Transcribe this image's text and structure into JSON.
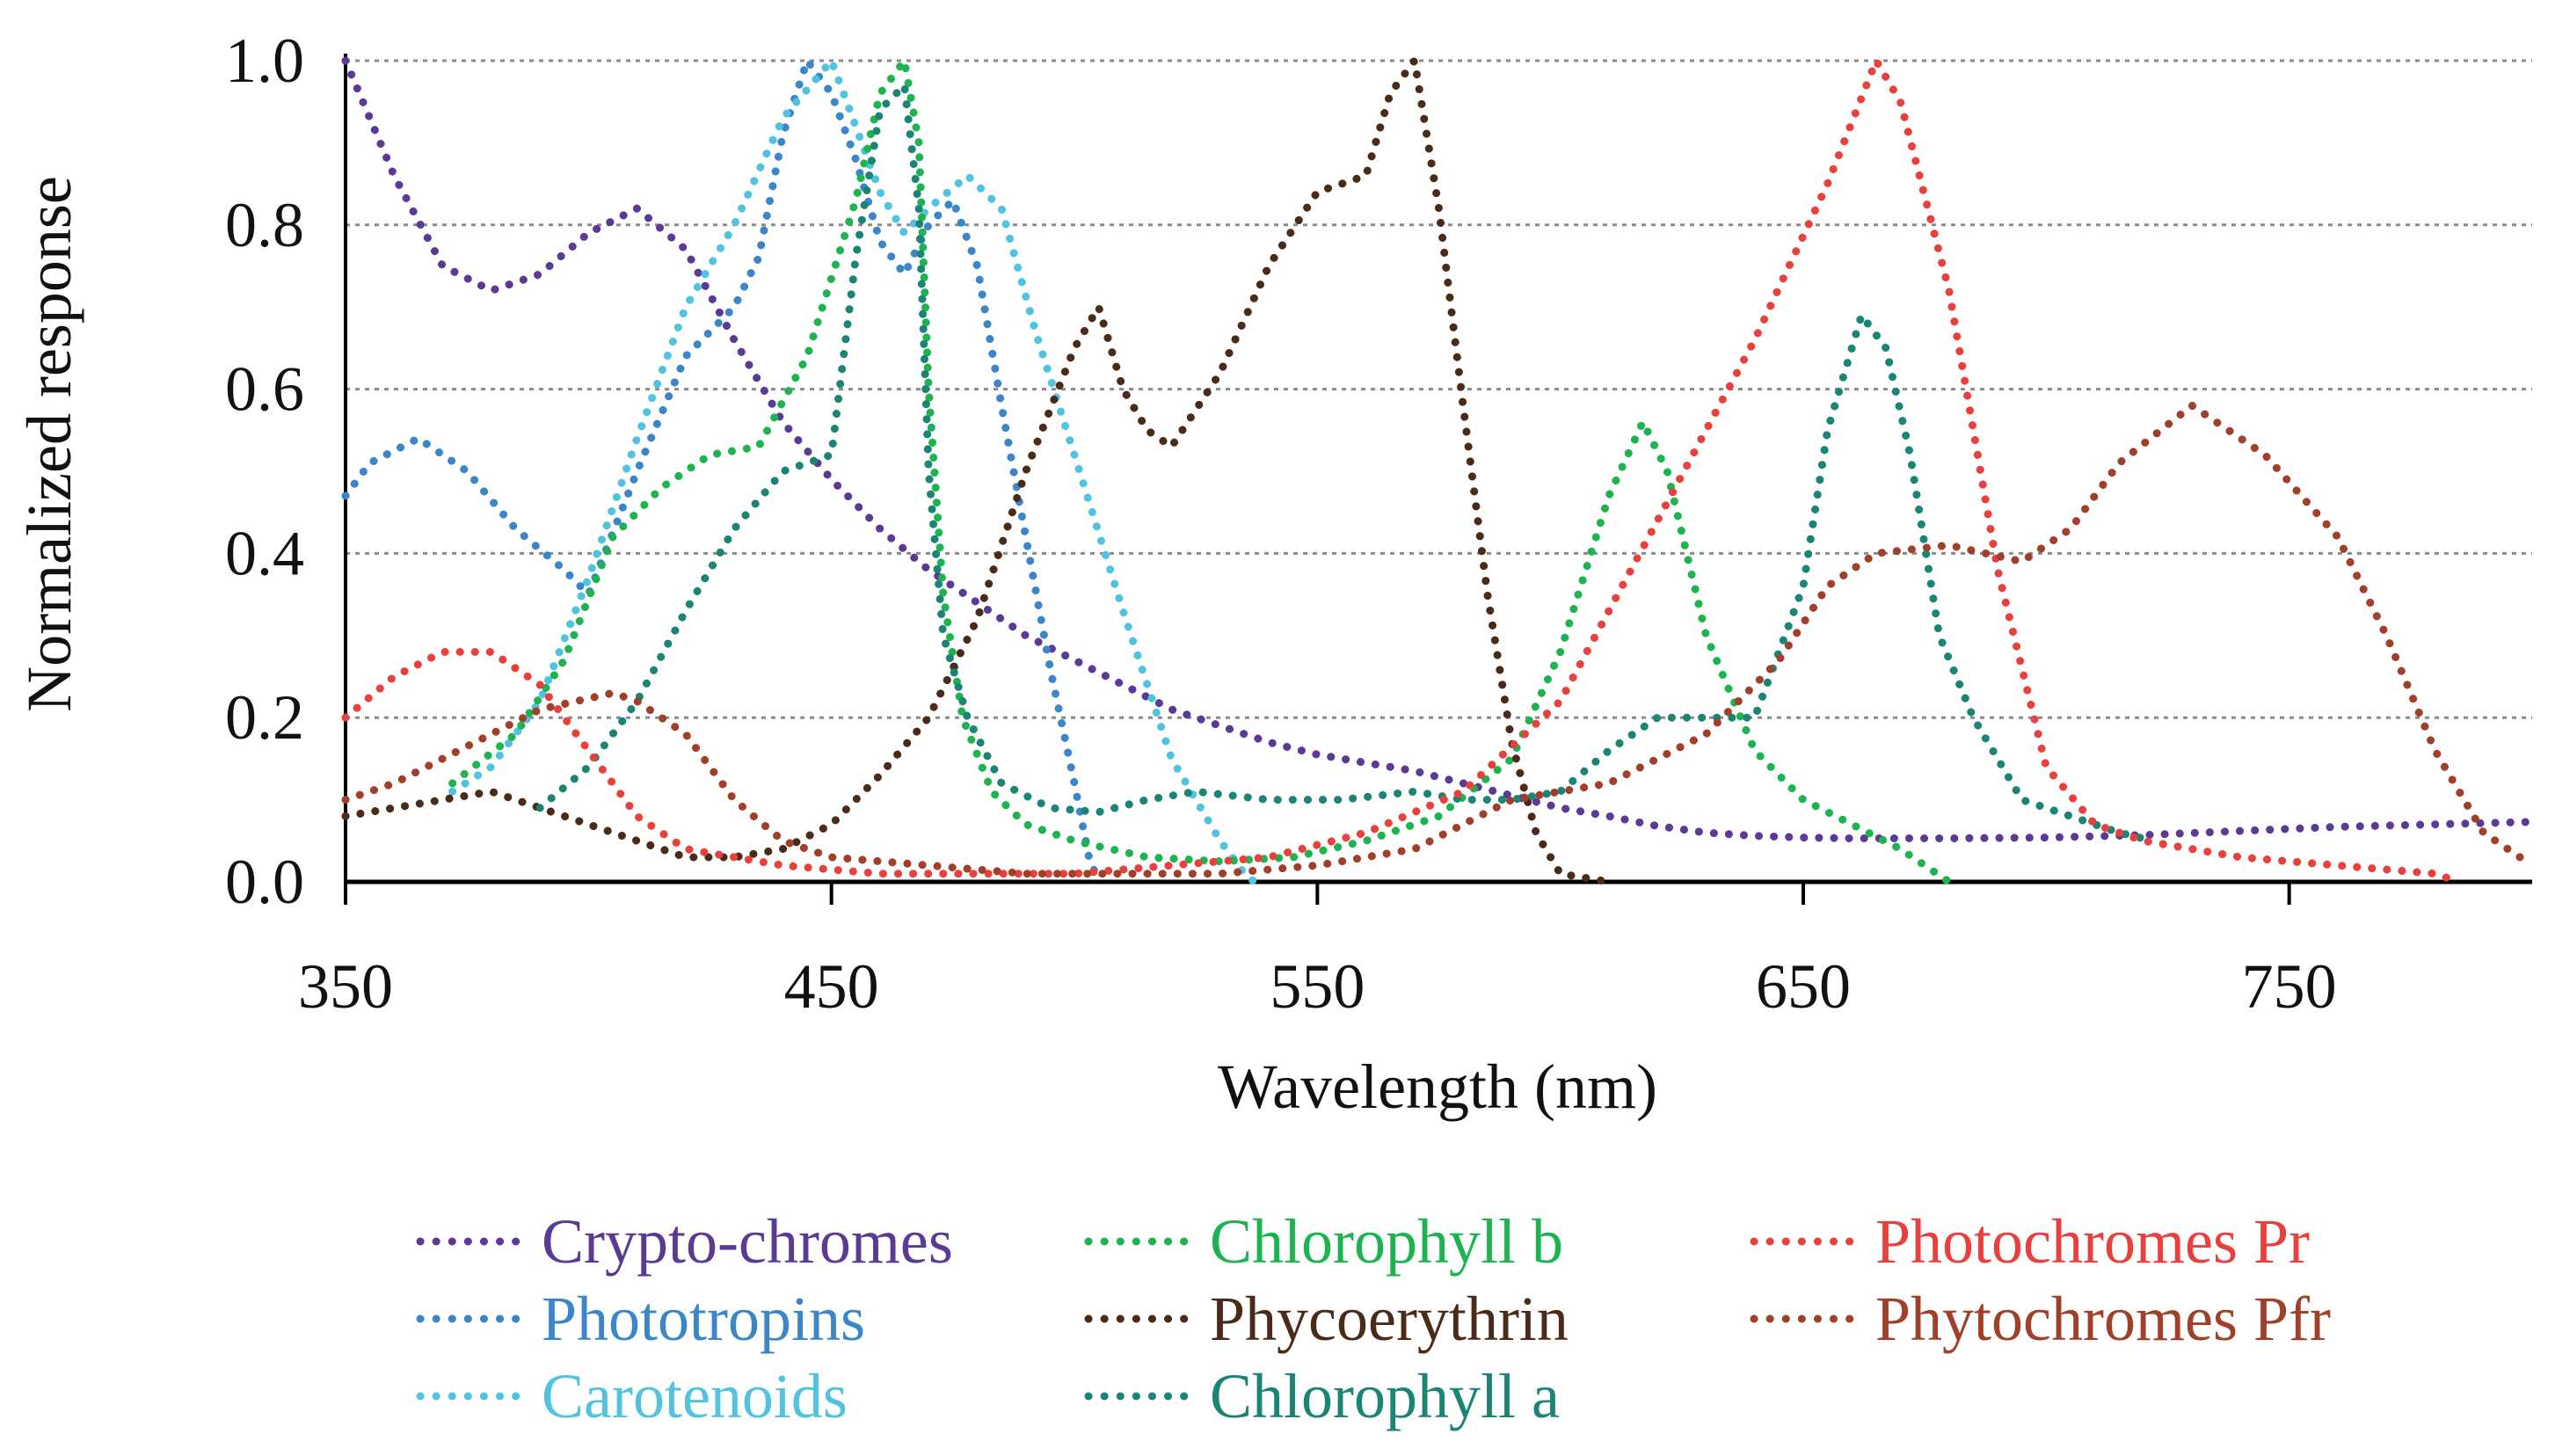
{
  "chart_data": {
    "type": "line",
    "title": "",
    "xlabel": "Wavelength (nm)",
    "ylabel": "Normalized  response",
    "xlim": [
      350,
      800
    ],
    "ylim": [
      0,
      1.0
    ],
    "x_ticks": [
      350,
      450,
      550,
      650,
      750
    ],
    "x_tick_labels": [
      "350",
      "450",
      "550",
      "650",
      "750"
    ],
    "y_ticks": [
      0,
      0.2,
      0.4,
      0.6,
      0.8,
      1.0
    ],
    "y_tick_labels": [
      "0.0",
      "0.2",
      "0.4",
      "0.6",
      "0.8",
      "1.0"
    ],
    "grid": "horizontal dotted",
    "legend_position": "bottom",
    "series": [
      {
        "name": "Crypto-chromes",
        "color": "#5b3a96",
        "points": [
          [
            350,
            1.0
          ],
          [
            360,
            0.86
          ],
          [
            370,
            0.75
          ],
          [
            380,
            0.72
          ],
          [
            390,
            0.74
          ],
          [
            400,
            0.79
          ],
          [
            410,
            0.82
          ],
          [
            420,
            0.77
          ],
          [
            430,
            0.66
          ],
          [
            440,
            0.56
          ],
          [
            450,
            0.49
          ],
          [
            460,
            0.43
          ],
          [
            470,
            0.38
          ],
          [
            480,
            0.34
          ],
          [
            490,
            0.3
          ],
          [
            500,
            0.27
          ],
          [
            510,
            0.24
          ],
          [
            520,
            0.21
          ],
          [
            530,
            0.19
          ],
          [
            540,
            0.17
          ],
          [
            550,
            0.155
          ],
          [
            560,
            0.145
          ],
          [
            570,
            0.135
          ],
          [
            580,
            0.12
          ],
          [
            590,
            0.105
          ],
          [
            600,
            0.09
          ],
          [
            610,
            0.08
          ],
          [
            620,
            0.068
          ],
          [
            630,
            0.06
          ],
          [
            640,
            0.056
          ],
          [
            650,
            0.054
          ],
          [
            660,
            0.053
          ],
          [
            680,
            0.053
          ],
          [
            700,
            0.054
          ],
          [
            720,
            0.057
          ],
          [
            740,
            0.062
          ],
          [
            760,
            0.067
          ],
          [
            780,
            0.07
          ],
          [
            800,
            0.073
          ]
        ]
      },
      {
        "name": "Phototropins",
        "color": "#3a86c8",
        "points": [
          [
            350,
            0.47
          ],
          [
            355,
            0.51
          ],
          [
            365,
            0.54
          ],
          [
            375,
            0.5
          ],
          [
            385,
            0.43
          ],
          [
            395,
            0.38
          ],
          [
            400,
            0.35
          ],
          [
            410,
            0.5
          ],
          [
            420,
            0.64
          ],
          [
            430,
            0.7
          ],
          [
            435,
            0.76
          ],
          [
            440,
            0.91
          ],
          [
            445,
            1.0
          ],
          [
            450,
            0.96
          ],
          [
            455,
            0.88
          ],
          [
            460,
            0.78
          ],
          [
            465,
            0.74
          ],
          [
            470,
            0.8
          ],
          [
            475,
            0.83
          ],
          [
            480,
            0.75
          ],
          [
            485,
            0.58
          ],
          [
            490,
            0.42
          ],
          [
            495,
            0.26
          ],
          [
            500,
            0.12
          ],
          [
            503,
            0.03
          ],
          [
            505,
            0.0
          ]
        ]
      },
      {
        "name": "Carotenoids",
        "color": "#4fc3e0",
        "points": [
          [
            372,
            0.11
          ],
          [
            380,
            0.14
          ],
          [
            390,
            0.22
          ],
          [
            400,
            0.37
          ],
          [
            410,
            0.54
          ],
          [
            420,
            0.7
          ],
          [
            430,
            0.8
          ],
          [
            440,
            0.93
          ],
          [
            450,
            1.0
          ],
          [
            455,
            0.92
          ],
          [
            460,
            0.84
          ],
          [
            465,
            0.79
          ],
          [
            470,
            0.82
          ],
          [
            478,
            0.86
          ],
          [
            485,
            0.82
          ],
          [
            492,
            0.67
          ],
          [
            500,
            0.52
          ],
          [
            510,
            0.33
          ],
          [
            520,
            0.15
          ],
          [
            530,
            0.05
          ],
          [
            535,
            0.01
          ],
          [
            537,
            0.0
          ]
        ]
      },
      {
        "name": "Chlorophyll b",
        "color": "#1db34f",
        "points": [
          [
            372,
            0.12
          ],
          [
            385,
            0.18
          ],
          [
            395,
            0.27
          ],
          [
            405,
            0.42
          ],
          [
            415,
            0.48
          ],
          [
            425,
            0.52
          ],
          [
            435,
            0.53
          ],
          [
            445,
            0.64
          ],
          [
            455,
            0.83
          ],
          [
            460,
            0.96
          ],
          [
            465,
            1.0
          ],
          [
            468,
            0.9
          ],
          [
            470,
            0.6
          ],
          [
            473,
            0.35
          ],
          [
            477,
            0.2
          ],
          [
            483,
            0.11
          ],
          [
            490,
            0.07
          ],
          [
            500,
            0.05
          ],
          [
            515,
            0.03
          ],
          [
            530,
            0.025
          ],
          [
            545,
            0.03
          ],
          [
            560,
            0.05
          ],
          [
            575,
            0.08
          ],
          [
            590,
            0.15
          ],
          [
            600,
            0.28
          ],
          [
            610,
            0.47
          ],
          [
            617,
            0.56
          ],
          [
            622,
            0.5
          ],
          [
            630,
            0.3
          ],
          [
            640,
            0.16
          ],
          [
            650,
            0.1
          ],
          [
            660,
            0.07
          ],
          [
            670,
            0.04
          ],
          [
            680,
            0.0
          ]
        ]
      },
      {
        "name": "Phycoerythrin",
        "color": "#4a2a18",
        "points": [
          [
            350,
            0.08
          ],
          [
            360,
            0.09
          ],
          [
            370,
            0.1
          ],
          [
            380,
            0.11
          ],
          [
            390,
            0.09
          ],
          [
            400,
            0.07
          ],
          [
            410,
            0.05
          ],
          [
            420,
            0.03
          ],
          [
            430,
            0.03
          ],
          [
            440,
            0.04
          ],
          [
            450,
            0.07
          ],
          [
            460,
            0.13
          ],
          [
            470,
            0.2
          ],
          [
            480,
            0.32
          ],
          [
            490,
            0.5
          ],
          [
            500,
            0.65
          ],
          [
            505,
            0.7
          ],
          [
            510,
            0.6
          ],
          [
            515,
            0.55
          ],
          [
            520,
            0.53
          ],
          [
            530,
            0.62
          ],
          [
            540,
            0.75
          ],
          [
            550,
            0.84
          ],
          [
            560,
            0.86
          ],
          [
            565,
            0.96
          ],
          [
            570,
            1.0
          ],
          [
            575,
            0.82
          ],
          [
            580,
            0.58
          ],
          [
            585,
            0.35
          ],
          [
            590,
            0.17
          ],
          [
            595,
            0.06
          ],
          [
            600,
            0.01
          ],
          [
            610,
            0.0
          ]
        ]
      },
      {
        "name": "Chlorophyll a",
        "color": "#1a8475",
        "points": [
          [
            390,
            0.09
          ],
          [
            400,
            0.14
          ],
          [
            410,
            0.22
          ],
          [
            420,
            0.33
          ],
          [
            430,
            0.43
          ],
          [
            440,
            0.5
          ],
          [
            450,
            0.52
          ],
          [
            455,
            0.76
          ],
          [
            460,
            0.94
          ],
          [
            465,
            0.97
          ],
          [
            468,
            0.82
          ],
          [
            470,
            0.5
          ],
          [
            473,
            0.3
          ],
          [
            478,
            0.2
          ],
          [
            485,
            0.12
          ],
          [
            495,
            0.09
          ],
          [
            505,
            0.085
          ],
          [
            515,
            0.1
          ],
          [
            525,
            0.11
          ],
          [
            540,
            0.1
          ],
          [
            555,
            0.1
          ],
          [
            570,
            0.11
          ],
          [
            580,
            0.1
          ],
          [
            590,
            0.1
          ],
          [
            600,
            0.11
          ],
          [
            610,
            0.16
          ],
          [
            620,
            0.2
          ],
          [
            630,
            0.2
          ],
          [
            640,
            0.2
          ],
          [
            650,
            0.36
          ],
          [
            655,
            0.55
          ],
          [
            662,
            0.69
          ],
          [
            667,
            0.65
          ],
          [
            672,
            0.52
          ],
          [
            678,
            0.3
          ],
          [
            685,
            0.2
          ],
          [
            695,
            0.1
          ],
          [
            705,
            0.08
          ],
          [
            715,
            0.06
          ],
          [
            722,
            0.05
          ]
        ]
      },
      {
        "name": "Photochromes Pr",
        "color": "#e8403c",
        "points": [
          [
            350,
            0.2
          ],
          [
            360,
            0.25
          ],
          [
            370,
            0.28
          ],
          [
            380,
            0.28
          ],
          [
            390,
            0.24
          ],
          [
            400,
            0.16
          ],
          [
            410,
            0.08
          ],
          [
            420,
            0.04
          ],
          [
            440,
            0.02
          ],
          [
            460,
            0.01
          ],
          [
            480,
            0.01
          ],
          [
            500,
            0.01
          ],
          [
            520,
            0.02
          ],
          [
            540,
            0.03
          ],
          [
            560,
            0.06
          ],
          [
            580,
            0.11
          ],
          [
            600,
            0.22
          ],
          [
            620,
            0.44
          ],
          [
            640,
            0.66
          ],
          [
            655,
            0.85
          ],
          [
            665,
            1.0
          ],
          [
            670,
            0.95
          ],
          [
            680,
            0.72
          ],
          [
            690,
            0.38
          ],
          [
            700,
            0.14
          ],
          [
            710,
            0.07
          ],
          [
            720,
            0.05
          ],
          [
            740,
            0.03
          ],
          [
            760,
            0.02
          ],
          [
            780,
            0.01
          ],
          [
            785,
            0.0
          ]
        ]
      },
      {
        "name": "Phytochromes Pfr",
        "color": "#a0402a",
        "points": [
          [
            350,
            0.1
          ],
          [
            360,
            0.12
          ],
          [
            370,
            0.15
          ],
          [
            380,
            0.18
          ],
          [
            390,
            0.21
          ],
          [
            405,
            0.23
          ],
          [
            410,
            0.22
          ],
          [
            420,
            0.18
          ],
          [
            430,
            0.1
          ],
          [
            440,
            0.05
          ],
          [
            450,
            0.03
          ],
          [
            470,
            0.02
          ],
          [
            490,
            0.01
          ],
          [
            510,
            0.01
          ],
          [
            530,
            0.01
          ],
          [
            550,
            0.02
          ],
          [
            570,
            0.04
          ],
          [
            590,
            0.1
          ],
          [
            610,
            0.12
          ],
          [
            630,
            0.18
          ],
          [
            645,
            0.27
          ],
          [
            655,
            0.36
          ],
          [
            665,
            0.4
          ],
          [
            680,
            0.41
          ],
          [
            695,
            0.39
          ],
          [
            705,
            0.43
          ],
          [
            715,
            0.51
          ],
          [
            730,
            0.58
          ],
          [
            745,
            0.52
          ],
          [
            760,
            0.42
          ],
          [
            770,
            0.3
          ],
          [
            780,
            0.16
          ],
          [
            790,
            0.06
          ],
          [
            800,
            0.02
          ]
        ]
      }
    ]
  }
}
